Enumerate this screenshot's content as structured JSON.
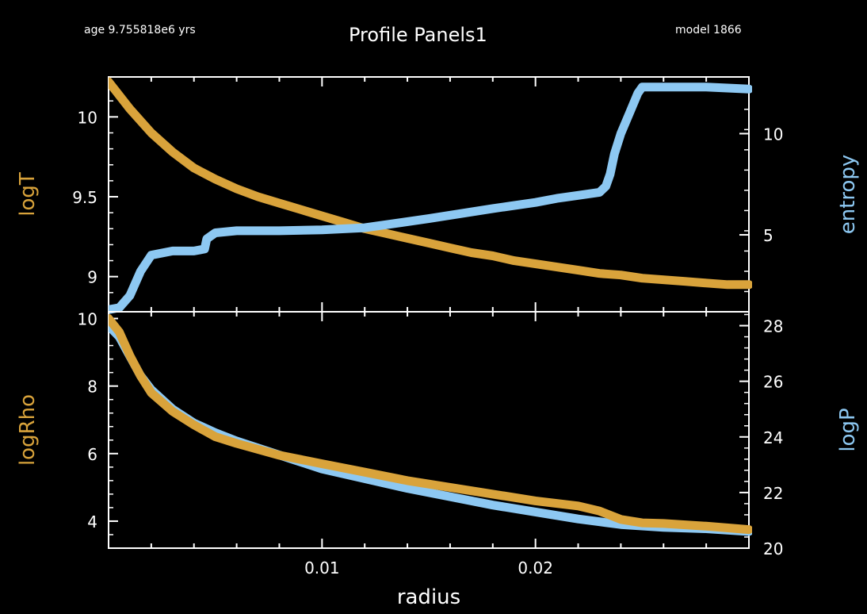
{
  "header": {
    "age": "age 9.755818e6 yrs",
    "title": "Profile Panels1",
    "model": "model 1866"
  },
  "colors": {
    "orange": "#d9a33b",
    "blue": "#8dc8f2",
    "frame": "#ffffff",
    "background": "#000000"
  },
  "chart_data": [
    {
      "type": "line",
      "panel": "top",
      "xlabel": "radius",
      "xlim": [
        0,
        0.03
      ],
      "xticks": [],
      "left_axis": {
        "label": "logT",
        "ylim": [
          8.78,
          10.25
        ],
        "ticks": [
          9,
          9.5,
          10
        ],
        "tick_labels": [
          "9",
          "9.5",
          "10"
        ]
      },
      "right_axis": {
        "label": "entropy",
        "ylim": [
          1.2,
          12.8
        ],
        "ticks": [
          5,
          10
        ],
        "tick_labels": [
          "5",
          "10"
        ]
      },
      "series": [
        {
          "name": "logT",
          "axis": "left",
          "color": "#d9a33b",
          "x": [
            0,
            0.001,
            0.002,
            0.003,
            0.004,
            0.005,
            0.006,
            0.007,
            0.008,
            0.009,
            0.01,
            0.011,
            0.012,
            0.013,
            0.014,
            0.015,
            0.016,
            0.017,
            0.018,
            0.019,
            0.02,
            0.021,
            0.022,
            0.023,
            0.024,
            0.025,
            0.026,
            0.027,
            0.028,
            0.029,
            0.03
          ],
          "y": [
            10.22,
            10.05,
            9.9,
            9.78,
            9.68,
            9.61,
            9.55,
            9.5,
            9.46,
            9.42,
            9.38,
            9.34,
            9.3,
            9.27,
            9.24,
            9.21,
            9.18,
            9.15,
            9.13,
            9.1,
            9.08,
            9.06,
            9.04,
            9.02,
            9.01,
            8.99,
            8.98,
            8.97,
            8.96,
            8.95,
            8.95
          ]
        },
        {
          "name": "entropy",
          "axis": "right",
          "color": "#8dc8f2",
          "x": [
            0,
            0.0005,
            0.001,
            0.0015,
            0.002,
            0.0025,
            0.003,
            0.004,
            0.0045,
            0.0046,
            0.005,
            0.006,
            0.008,
            0.01,
            0.012,
            0.015,
            0.018,
            0.02,
            0.021,
            0.022,
            0.023,
            0.0233,
            0.0235,
            0.0237,
            0.024,
            0.0244,
            0.0248,
            0.025,
            0.026,
            0.028,
            0.03
          ],
          "y": [
            1.3,
            1.4,
            2.0,
            3.2,
            4.0,
            4.1,
            4.2,
            4.2,
            4.3,
            4.8,
            5.1,
            5.2,
            5.2,
            5.25,
            5.35,
            5.8,
            6.3,
            6.6,
            6.8,
            6.95,
            7.1,
            7.4,
            8.0,
            9.0,
            10.0,
            11.0,
            12.0,
            12.3,
            12.3,
            12.3,
            12.2
          ]
        }
      ]
    },
    {
      "type": "line",
      "panel": "bottom",
      "xlabel": "radius",
      "xlim": [
        0,
        0.03
      ],
      "xticks": [
        0.01,
        0.02
      ],
      "xtick_labels": [
        "0.01",
        "0.02"
      ],
      "left_axis": {
        "label": "logRho",
        "ylim": [
          3.2,
          10.2
        ],
        "ticks": [
          4,
          6,
          8,
          10
        ],
        "tick_labels": [
          "4",
          "6",
          "8",
          "10"
        ]
      },
      "right_axis": {
        "label": "logP",
        "ylim": [
          20,
          28.5
        ],
        "ticks": [
          20,
          22,
          24,
          26,
          28
        ],
        "tick_labels": [
          "20",
          "22",
          "24",
          "26",
          "28"
        ]
      },
      "series": [
        {
          "name": "logP",
          "axis": "right",
          "color": "#8dc8f2",
          "x": [
            0,
            0.0005,
            0.001,
            0.0015,
            0.002,
            0.003,
            0.004,
            0.005,
            0.006,
            0.008,
            0.01,
            0.012,
            0.014,
            0.016,
            0.018,
            0.02,
            0.022,
            0.023,
            0.024,
            0.025,
            0.026,
            0.028,
            0.03
          ],
          "y": [
            28.0,
            27.6,
            26.9,
            26.2,
            25.7,
            25.0,
            24.5,
            24.15,
            23.85,
            23.35,
            22.85,
            22.5,
            22.15,
            21.85,
            21.55,
            21.3,
            21.05,
            20.95,
            20.85,
            20.8,
            20.75,
            20.7,
            20.6
          ]
        },
        {
          "name": "logRho",
          "axis": "left",
          "color": "#d9a33b",
          "x": [
            0,
            0.0005,
            0.001,
            0.0015,
            0.002,
            0.003,
            0.004,
            0.005,
            0.006,
            0.008,
            0.01,
            0.012,
            0.014,
            0.016,
            0.018,
            0.02,
            0.022,
            0.023,
            0.024,
            0.025,
            0.026,
            0.028,
            0.03
          ],
          "y": [
            10.0,
            9.6,
            8.9,
            8.3,
            7.8,
            7.25,
            6.85,
            6.5,
            6.3,
            5.95,
            5.7,
            5.45,
            5.2,
            5.0,
            4.8,
            4.6,
            4.45,
            4.3,
            4.05,
            3.95,
            3.93,
            3.85,
            3.75
          ]
        }
      ]
    }
  ]
}
